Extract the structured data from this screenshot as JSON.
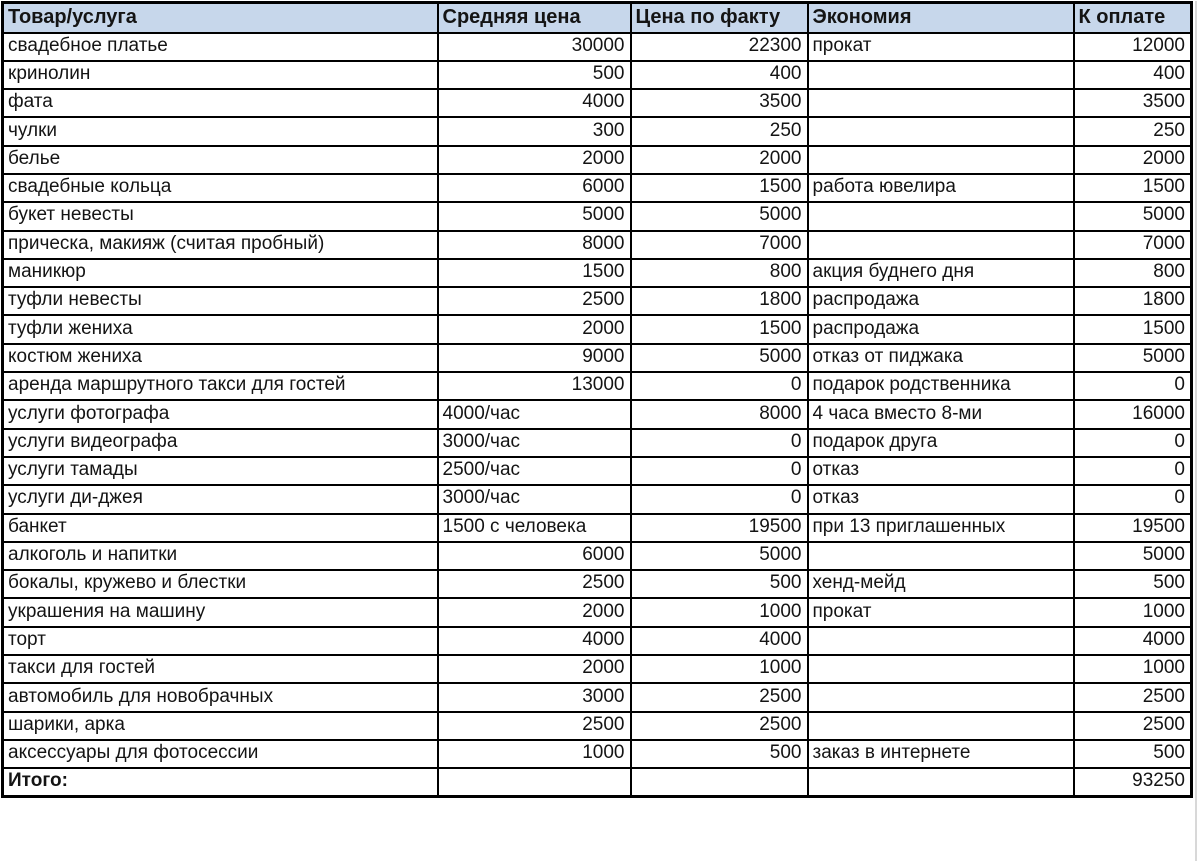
{
  "table": {
    "columns": [
      {
        "label": "Товар/услуга",
        "align": "left"
      },
      {
        "label": "Средняя цена",
        "align": "auto"
      },
      {
        "label": "Цена по факту",
        "align": "right"
      },
      {
        "label": "Экономия",
        "align": "left"
      },
      {
        "label": "К оплате",
        "align": "right"
      }
    ],
    "rows": [
      [
        "свадебное платье",
        "30000",
        "22300",
        "прокат",
        "12000"
      ],
      [
        "кринолин",
        "500",
        "400",
        "",
        "400"
      ],
      [
        "фата",
        "4000",
        "3500",
        "",
        "3500"
      ],
      [
        "чулки",
        "300",
        "250",
        "",
        "250"
      ],
      [
        "белье",
        "2000",
        "2000",
        "",
        "2000"
      ],
      [
        "свадебные кольца",
        "6000",
        "1500",
        "работа ювелира",
        "1500"
      ],
      [
        "букет невесты",
        "5000",
        "5000",
        "",
        "5000"
      ],
      [
        "прическа, макияж (считая пробный)",
        "8000",
        "7000",
        "",
        "7000"
      ],
      [
        "маникюр",
        "1500",
        "800",
        "акция буднего дня",
        "800"
      ],
      [
        "туфли невесты",
        "2500",
        "1800",
        "распродажа",
        "1800"
      ],
      [
        "туфли жениха",
        "2000",
        "1500",
        "распродажа",
        "1500"
      ],
      [
        "костюм жениха",
        "9000",
        "5000",
        "отказ от пиджака",
        "5000"
      ],
      [
        "аренда маршрутного такси для гостей",
        "13000",
        "0",
        "подарок родственника",
        "0"
      ],
      [
        "услуги фотографа",
        "4000/час",
        "8000",
        "4 часа вместо 8-ми",
        "16000"
      ],
      [
        "услуги видеографа",
        "3000/час",
        "0",
        "подарок друга",
        "0"
      ],
      [
        "услуги тамады",
        "2500/час",
        "0",
        "отказ",
        "0"
      ],
      [
        "услуги ди-джея",
        "3000/час",
        "0",
        "отказ",
        "0"
      ],
      [
        "банкет",
        "1500 с человека",
        "19500",
        "при 13 приглашенных",
        "19500"
      ],
      [
        "алкоголь и напитки",
        "6000",
        "5000",
        "",
        "5000"
      ],
      [
        "бокалы, кружево и блестки",
        "2500",
        "500",
        "хенд-мейд",
        "500"
      ],
      [
        "украшения на машину",
        "2000",
        "1000",
        "прокат",
        "1000"
      ],
      [
        "торт",
        "4000",
        "4000",
        "",
        "4000"
      ],
      [
        "такси для гостей",
        "2000",
        "1000",
        "",
        "1000"
      ],
      [
        "автомобиль для новобрачных",
        "3000",
        "2500",
        "",
        "2500"
      ],
      [
        "шарики, арка",
        "2500",
        "2500",
        "",
        "2500"
      ],
      [
        "аксессуары для фотосессии",
        "1000",
        "500",
        "заказ в интернете",
        "500"
      ]
    ],
    "total_row": {
      "label": "Итого:",
      "value": "93250"
    },
    "colors": {
      "header_bg": "#c7d7eb",
      "border": "#000000",
      "text": "#141414"
    }
  }
}
